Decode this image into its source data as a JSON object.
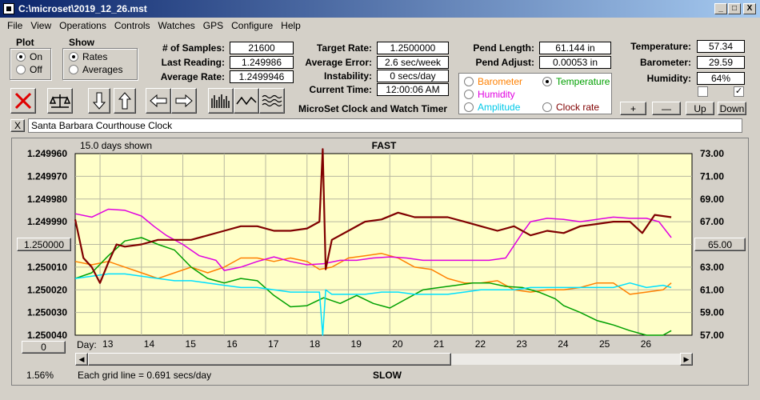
{
  "window": {
    "title": "C:\\microset\\2019_12_26.mst",
    "min": "_",
    "max": "□",
    "close": "X"
  },
  "menu": [
    "File",
    "View",
    "Operations",
    "Controls",
    "Watches",
    "GPS",
    "Configure",
    "Help"
  ],
  "plot_group": {
    "title": "Plot",
    "on": "On",
    "off": "Off"
  },
  "show_group": {
    "title": "Show",
    "rates": "Rates",
    "averages": "Averages"
  },
  "stats": {
    "samples_label": "# of Samples:",
    "samples": "21600",
    "last_label": "Last Reading:",
    "last": "1.249986",
    "avg_label": "Average Rate:",
    "avg": "1.2499946",
    "target_label": "Target Rate:",
    "target": "1.2500000",
    "err_label": "Average Error:",
    "err": "2.6 sec/week",
    "inst_label": "Instability:",
    "inst": "0 secs/day",
    "time_label": "Current Time:",
    "time": "12:00:06 AM",
    "pend_len_label": "Pend Length:",
    "pend_len": "61.144 in",
    "pend_adj_label": "Pend Adjust:",
    "pend_adj": "0.00053 in",
    "temp_label": "Temperature:",
    "temp": "57.34",
    "baro_label": "Barometer:",
    "baro": "29.59",
    "hum_label": "Humidity:",
    "hum": "64%"
  },
  "app_name": "MicroSet Clock and Watch Timer",
  "overlay": {
    "barometer": "Barometer",
    "temperature": "Temperature",
    "humidity": "Humidity",
    "amplitude": "Amplitude",
    "clock_rate": "Clock rate"
  },
  "adjust_buttons": {
    "plus": "+",
    "minus": "—",
    "up": "Up",
    "down": "Down"
  },
  "check_right": "✓",
  "clock_name": "Santa Barbara Courthouse Clock",
  "clear_name": "X",
  "colors": {
    "barometer": "#ff8000",
    "temperature": "#00a000",
    "humidity": "#e000e0",
    "amplitude": "#00e0ff",
    "rate": "#800000",
    "plot_bg": "#ffffc8"
  },
  "footer": {
    "zero_btn": "0",
    "percent": "1.56%",
    "grid_note": "Each grid line = 0.691 secs/day",
    "slow": "SLOW",
    "day_label": "Day:",
    "center_left": "1.250000",
    "center_right": "65.00"
  },
  "chart_data": {
    "type": "line",
    "title": "FAST",
    "subtitle": "15.0 days shown",
    "xlabel": "Day:",
    "x_ticks": [
      13,
      14,
      15,
      16,
      17,
      18,
      19,
      20,
      21,
      22,
      23,
      24,
      25,
      26
    ],
    "xlim": [
      12.4,
      27.3
    ],
    "left_axis": {
      "ticks": [
        "1.249960",
        "1.249970",
        "1.249980",
        "1.249990",
        "1.250000",
        "1.250010",
        "1.250020",
        "1.250030",
        "1.250040"
      ],
      "ylim": [
        1.24996,
        1.25004
      ],
      "inverted": true
    },
    "right_axis": {
      "ticks": [
        "73.00",
        "71.00",
        "69.00",
        "67.00",
        "65.00",
        "63.00",
        "61.00",
        "59.00",
        "57.00"
      ],
      "ylim": [
        57,
        73
      ]
    },
    "grid": true,
    "series": [
      {
        "key": "rate",
        "axis": "left",
        "x": [
          12.4,
          12.6,
          12.8,
          13.0,
          13.2,
          13.4,
          13.6,
          14.0,
          14.4,
          14.8,
          15.2,
          15.6,
          16.0,
          16.4,
          16.8,
          17.2,
          17.6,
          18.0,
          18.3,
          18.38,
          18.45,
          18.6,
          19.0,
          19.4,
          19.8,
          20.2,
          20.6,
          21.0,
          21.4,
          21.8,
          22.2,
          22.6,
          23.0,
          23.4,
          23.8,
          24.2,
          24.6,
          25.0,
          25.4,
          25.8,
          26.1,
          26.4,
          26.8
        ],
        "y": [
          1.249989,
          1.250006,
          1.25001,
          1.250017,
          1.250008,
          1.25,
          1.250001,
          1.25,
          1.249998,
          1.249998,
          1.249998,
          1.249996,
          1.249994,
          1.249992,
          1.249992,
          1.249994,
          1.249994,
          1.249993,
          1.24999,
          1.249958,
          1.250011,
          1.249998,
          1.249994,
          1.24999,
          1.249989,
          1.249986,
          1.249988,
          1.249988,
          1.249988,
          1.24999,
          1.249992,
          1.249994,
          1.249992,
          1.249996,
          1.249994,
          1.249995,
          1.249992,
          1.249991,
          1.24999,
          1.24999,
          1.249995,
          1.249987,
          1.249988
        ]
      },
      {
        "key": "humidity",
        "axis": "right",
        "x": [
          12.4,
          12.8,
          13.2,
          13.6,
          14.0,
          14.3,
          14.6,
          15.0,
          15.4,
          15.8,
          16.0,
          16.4,
          16.8,
          17.2,
          17.6,
          18.0,
          18.4,
          18.8,
          19.2,
          19.6,
          20.0,
          20.4,
          20.8,
          21.2,
          21.6,
          22.0,
          22.4,
          22.8,
          23.2,
          23.4,
          23.8,
          24.2,
          24.6,
          25.0,
          25.4,
          25.8,
          26.2,
          26.5,
          26.8
        ],
        "y": [
          67.7,
          67.4,
          68.1,
          68.0,
          67.5,
          66.6,
          65.8,
          65.0,
          64.0,
          63.6,
          62.7,
          63.0,
          63.5,
          63.9,
          63.5,
          63.2,
          63.3,
          63.6,
          63.6,
          63.8,
          63.9,
          63.8,
          63.6,
          63.6,
          63.6,
          63.6,
          63.6,
          63.8,
          66.0,
          67.0,
          67.3,
          67.2,
          67.0,
          67.2,
          67.4,
          67.3,
          67.3,
          67.0,
          65.6
        ]
      },
      {
        "key": "barometer",
        "axis": "right",
        "x": [
          12.4,
          12.8,
          13.2,
          13.6,
          14.0,
          14.4,
          14.8,
          15.2,
          15.6,
          16.0,
          16.4,
          16.8,
          17.2,
          17.6,
          18.0,
          18.3,
          18.6,
          19.0,
          19.4,
          19.8,
          20.2,
          20.6,
          21.0,
          21.4,
          21.8,
          22.2,
          22.6,
          23.0,
          23.4,
          23.8,
          24.2,
          24.6,
          25.0,
          25.4,
          25.8,
          26.2,
          26.6,
          26.8
        ],
        "y": [
          63.5,
          63.2,
          63.5,
          63.0,
          62.5,
          62.0,
          62.5,
          63.0,
          62.5,
          63.0,
          63.8,
          63.8,
          63.5,
          63.8,
          63.5,
          62.8,
          63.0,
          63.8,
          64.0,
          64.2,
          63.8,
          63.0,
          62.8,
          62.0,
          61.6,
          61.6,
          61.8,
          61.0,
          60.8,
          61.0,
          61.0,
          61.2,
          61.6,
          61.6,
          60.6,
          60.8,
          61.0,
          61.6
        ]
      },
      {
        "key": "temperature",
        "axis": "right",
        "x": [
          12.4,
          12.8,
          13.2,
          13.6,
          14.0,
          14.4,
          14.8,
          15.2,
          15.6,
          16.0,
          16.4,
          16.8,
          17.2,
          17.6,
          18.0,
          18.4,
          18.8,
          19.2,
          19.6,
          20.0,
          20.4,
          20.8,
          21.2,
          21.6,
          22.0,
          22.4,
          22.8,
          23.2,
          23.6,
          24.0,
          24.2,
          24.6,
          25.0,
          25.4,
          25.8,
          26.2,
          26.6,
          26.8
        ],
        "y": [
          62.0,
          62.5,
          64.0,
          65.3,
          65.6,
          65.0,
          64.5,
          63.0,
          62.0,
          61.6,
          62.0,
          61.8,
          60.5,
          59.5,
          59.6,
          60.3,
          59.8,
          60.5,
          59.8,
          59.4,
          60.2,
          61.0,
          61.2,
          61.4,
          61.6,
          61.6,
          61.3,
          61.2,
          60.8,
          60.2,
          59.6,
          59.0,
          58.3,
          57.9,
          57.4,
          57.0,
          57.0,
          57.4
        ]
      },
      {
        "key": "amplitude",
        "axis": "right",
        "x": [
          12.4,
          12.8,
          13.2,
          13.6,
          14.0,
          14.4,
          14.8,
          15.2,
          15.6,
          16.0,
          16.4,
          16.8,
          17.2,
          17.6,
          18.0,
          18.3,
          18.38,
          18.45,
          18.6,
          19.0,
          19.4,
          19.8,
          20.2,
          20.6,
          21.0,
          21.4,
          21.8,
          22.2,
          22.6,
          23.0,
          23.4,
          23.8,
          24.2,
          24.6,
          25.0,
          25.4,
          25.8,
          26.2,
          26.6,
          26.8
        ],
        "y": [
          62.0,
          62.2,
          62.4,
          62.4,
          62.2,
          62.0,
          61.8,
          61.8,
          61.6,
          61.4,
          61.2,
          61.2,
          61.0,
          60.8,
          60.8,
          60.8,
          57.0,
          61.0,
          60.6,
          60.6,
          60.6,
          60.8,
          60.8,
          60.6,
          60.6,
          60.6,
          60.8,
          61.0,
          61.0,
          61.0,
          61.2,
          61.2,
          61.2,
          61.2,
          61.2,
          61.2,
          61.6,
          61.2,
          61.4,
          61.2
        ]
      }
    ]
  }
}
